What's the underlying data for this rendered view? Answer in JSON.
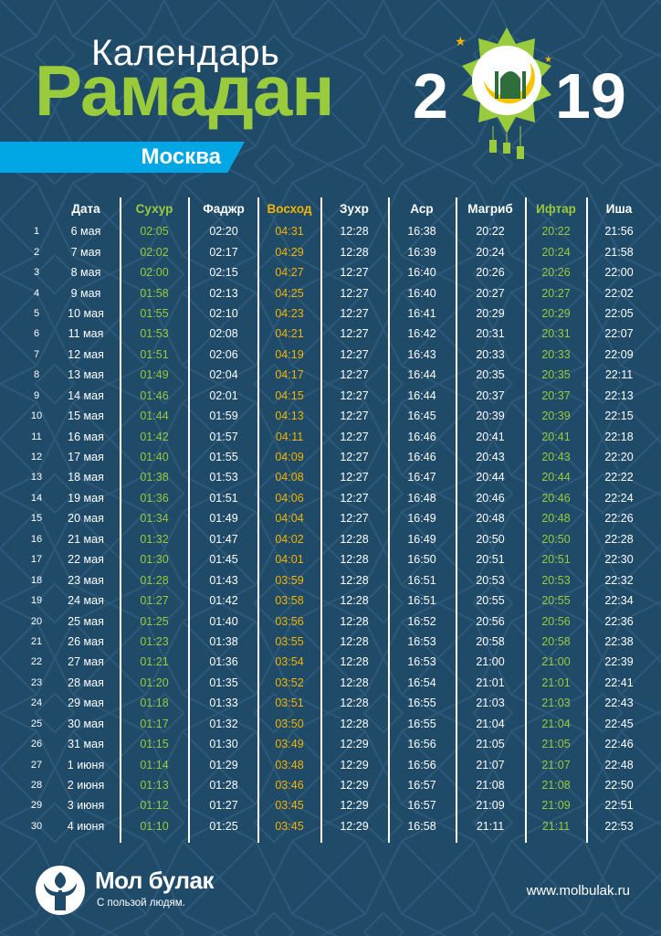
{
  "header": {
    "title_small": "Календарь",
    "title_big": "Рамадан",
    "year_left": "2",
    "year_right": "19",
    "city": "Москва"
  },
  "colors": {
    "background": "#1f4a68",
    "green": "#9acb3c",
    "orange": "#f4b400",
    "blue": "#00a7e4",
    "white": "#ffffff"
  },
  "table": {
    "headers": {
      "date": "Дата",
      "suhur": "Сухур",
      "fajr": "Фаджр",
      "sunrise": "Восход",
      "zuhr": "Зухр",
      "asr": "Аср",
      "maghrib": "Магриб",
      "iftar": "Ифтар",
      "isha": "Иша"
    },
    "rows": [
      {
        "n": "1",
        "date": "6 мая",
        "suhur": "02:05",
        "fajr": "02:20",
        "sunrise": "04:31",
        "zuhr": "12:28",
        "asr": "16:38",
        "maghrib": "20:22",
        "iftar": "20:22",
        "isha": "21:56"
      },
      {
        "n": "2",
        "date": "7 мая",
        "suhur": "02:02",
        "fajr": "02:17",
        "sunrise": "04:29",
        "zuhr": "12:28",
        "asr": "16:39",
        "maghrib": "20:24",
        "iftar": "20:24",
        "isha": "21:58"
      },
      {
        "n": "3",
        "date": "8 мая",
        "suhur": "02:00",
        "fajr": "02:15",
        "sunrise": "04:27",
        "zuhr": "12:27",
        "asr": "16:40",
        "maghrib": "20:26",
        "iftar": "20:26",
        "isha": "22:00"
      },
      {
        "n": "4",
        "date": "9 мая",
        "suhur": "01:58",
        "fajr": "02:13",
        "sunrise": "04:25",
        "zuhr": "12:27",
        "asr": "16:40",
        "maghrib": "20:27",
        "iftar": "20:27",
        "isha": "22:02"
      },
      {
        "n": "5",
        "date": "10 мая",
        "suhur": "01:55",
        "fajr": "02:10",
        "sunrise": "04:23",
        "zuhr": "12:27",
        "asr": "16:41",
        "maghrib": "20:29",
        "iftar": "20:29",
        "isha": "22:05"
      },
      {
        "n": "6",
        "date": "11 мая",
        "suhur": "01:53",
        "fajr": "02:08",
        "sunrise": "04:21",
        "zuhr": "12:27",
        "asr": "16:42",
        "maghrib": "20:31",
        "iftar": "20:31",
        "isha": "22:07"
      },
      {
        "n": "7",
        "date": "12 мая",
        "suhur": "01:51",
        "fajr": "02:06",
        "sunrise": "04:19",
        "zuhr": "12:27",
        "asr": "16:43",
        "maghrib": "20:33",
        "iftar": "20:33",
        "isha": "22:09"
      },
      {
        "n": "8",
        "date": "13 мая",
        "suhur": "01:49",
        "fajr": "02:04",
        "sunrise": "04:17",
        "zuhr": "12:27",
        "asr": "16:44",
        "maghrib": "20:35",
        "iftar": "20:35",
        "isha": "22:11"
      },
      {
        "n": "9",
        "date": "14 мая",
        "suhur": "01:46",
        "fajr": "02:01",
        "sunrise": "04:15",
        "zuhr": "12:27",
        "asr": "16:44",
        "maghrib": "20:37",
        "iftar": "20:37",
        "isha": "22:13"
      },
      {
        "n": "10",
        "date": "15 мая",
        "suhur": "01:44",
        "fajr": "01:59",
        "sunrise": "04:13",
        "zuhr": "12:27",
        "asr": "16:45",
        "maghrib": "20:39",
        "iftar": "20:39",
        "isha": "22:15"
      },
      {
        "n": "11",
        "date": "16 мая",
        "suhur": "01:42",
        "fajr": "01:57",
        "sunrise": "04:11",
        "zuhr": "12:27",
        "asr": "16:46",
        "maghrib": "20:41",
        "iftar": "20:41",
        "isha": "22:18"
      },
      {
        "n": "12",
        "date": "17 мая",
        "suhur": "01:40",
        "fajr": "01:55",
        "sunrise": "04:09",
        "zuhr": "12:27",
        "asr": "16:46",
        "maghrib": "20:43",
        "iftar": "20:43",
        "isha": "22:20"
      },
      {
        "n": "13",
        "date": "18 мая",
        "suhur": "01:38",
        "fajr": "01:53",
        "sunrise": "04:08",
        "zuhr": "12:27",
        "asr": "16:47",
        "maghrib": "20:44",
        "iftar": "20:44",
        "isha": "22:22"
      },
      {
        "n": "14",
        "date": "19 мая",
        "suhur": "01:36",
        "fajr": "01:51",
        "sunrise": "04:06",
        "zuhr": "12:27",
        "asr": "16:48",
        "maghrib": "20:46",
        "iftar": "20:46",
        "isha": "22:24"
      },
      {
        "n": "15",
        "date": "20 мая",
        "suhur": "01:34",
        "fajr": "01:49",
        "sunrise": "04:04",
        "zuhr": "12:27",
        "asr": "16:49",
        "maghrib": "20:48",
        "iftar": "20:48",
        "isha": "22:26"
      },
      {
        "n": "16",
        "date": "21 мая",
        "suhur": "01:32",
        "fajr": "01:47",
        "sunrise": "04:02",
        "zuhr": "12:28",
        "asr": "16:49",
        "maghrib": "20:50",
        "iftar": "20:50",
        "isha": "22:28"
      },
      {
        "n": "17",
        "date": "22 мая",
        "suhur": "01:30",
        "fajr": "01:45",
        "sunrise": "04:01",
        "zuhr": "12:28",
        "asr": "16:50",
        "maghrib": "20:51",
        "iftar": "20:51",
        "isha": "22:30"
      },
      {
        "n": "18",
        "date": "23 мая",
        "suhur": "01:28",
        "fajr": "01:43",
        "sunrise": "03:59",
        "zuhr": "12:28",
        "asr": "16:51",
        "maghrib": "20:53",
        "iftar": "20:53",
        "isha": "22:32"
      },
      {
        "n": "19",
        "date": "24 мая",
        "suhur": "01:27",
        "fajr": "01:42",
        "sunrise": "03:58",
        "zuhr": "12:28",
        "asr": "16:51",
        "maghrib": "20:55",
        "iftar": "20:55",
        "isha": "22:34"
      },
      {
        "n": "20",
        "date": "25 мая",
        "suhur": "01:25",
        "fajr": "01:40",
        "sunrise": "03:56",
        "zuhr": "12:28",
        "asr": "16:52",
        "maghrib": "20:56",
        "iftar": "20:56",
        "isha": "22:36"
      },
      {
        "n": "21",
        "date": "26 мая",
        "suhur": "01:23",
        "fajr": "01:38",
        "sunrise": "03:55",
        "zuhr": "12:28",
        "asr": "16:53",
        "maghrib": "20:58",
        "iftar": "20:58",
        "isha": "22:38"
      },
      {
        "n": "22",
        "date": "27 мая",
        "suhur": "01:21",
        "fajr": "01:36",
        "sunrise": "03:54",
        "zuhr": "12:28",
        "asr": "16:53",
        "maghrib": "21:00",
        "iftar": "21:00",
        "isha": "22:39"
      },
      {
        "n": "23",
        "date": "28 мая",
        "suhur": "01:20",
        "fajr": "01:35",
        "sunrise": "03:52",
        "zuhr": "12:28",
        "asr": "16:54",
        "maghrib": "21:01",
        "iftar": "21:01",
        "isha": "22:41"
      },
      {
        "n": "24",
        "date": "29 мая",
        "suhur": "01:18",
        "fajr": "01:33",
        "sunrise": "03:51",
        "zuhr": "12:28",
        "asr": "16:55",
        "maghrib": "21:03",
        "iftar": "21:03",
        "isha": "22:43"
      },
      {
        "n": "25",
        "date": "30 мая",
        "suhur": "01:17",
        "fajr": "01:32",
        "sunrise": "03:50",
        "zuhr": "12:28",
        "asr": "16:55",
        "maghrib": "21:04",
        "iftar": "21:04",
        "isha": "22:45"
      },
      {
        "n": "26",
        "date": "31 мая",
        "suhur": "01:15",
        "fajr": "01:30",
        "sunrise": "03:49",
        "zuhr": "12:29",
        "asr": "16:56",
        "maghrib": "21:05",
        "iftar": "21:05",
        "isha": "22:46"
      },
      {
        "n": "27",
        "date": "1 июня",
        "suhur": "01:14",
        "fajr": "01:29",
        "sunrise": "03:48",
        "zuhr": "12:29",
        "asr": "16:56",
        "maghrib": "21:07",
        "iftar": "21:07",
        "isha": "22:48"
      },
      {
        "n": "28",
        "date": "2 июня",
        "suhur": "01:13",
        "fajr": "01:28",
        "sunrise": "03:46",
        "zuhr": "12:29",
        "asr": "16:57",
        "maghrib": "21:08",
        "iftar": "21:08",
        "isha": "22:50"
      },
      {
        "n": "29",
        "date": "3 июня",
        "suhur": "01:12",
        "fajr": "01:27",
        "sunrise": "03:45",
        "zuhr": "12:29",
        "asr": "16:57",
        "maghrib": "21:09",
        "iftar": "21:09",
        "isha": "22:51"
      },
      {
        "n": "30",
        "date": "4 июня",
        "suhur": "01:10",
        "fajr": "01:25",
        "sunrise": "03:45",
        "zuhr": "12:29",
        "asr": "16:58",
        "maghrib": "21:11",
        "iftar": "21:11",
        "isha": "22:53"
      }
    ]
  },
  "footer": {
    "brand": "Мол булак",
    "slogan": "С пользой людям.",
    "website": "www.molbulak.ru"
  }
}
